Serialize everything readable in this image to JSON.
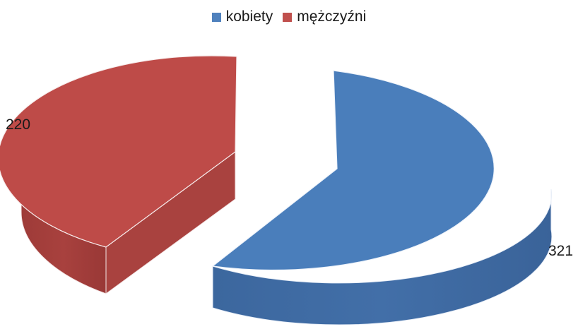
{
  "chart_data": {
    "type": "pie",
    "title": "",
    "categories": [
      "kobiety",
      "mężczyźni"
    ],
    "values": [
      321,
      220
    ],
    "colors": [
      "#4F81BD",
      "#C0504D"
    ],
    "legend_position": "top",
    "style": "3d-exploded"
  },
  "legend": {
    "items": [
      {
        "label": "kobiety",
        "color": "#4F81BD"
      },
      {
        "label": "mężczyźni",
        "color": "#C0504D"
      }
    ]
  },
  "labels": {
    "v0": "321",
    "v1": "220"
  }
}
